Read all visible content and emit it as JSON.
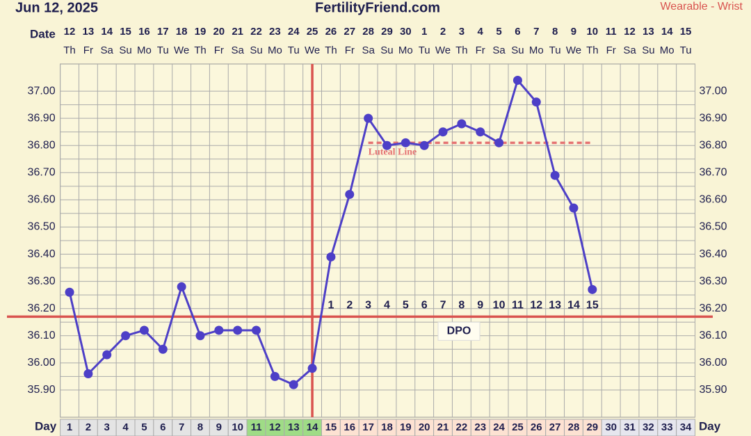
{
  "header": {
    "date": "Jun 12, 2025",
    "site": "FertilityFriend.com",
    "source": "Wearable - Wrist"
  },
  "chart_data": {
    "type": "line",
    "x_label": "Day",
    "date_label": "Date",
    "categories": [
      "1",
      "2",
      "3",
      "4",
      "5",
      "6",
      "7",
      "8",
      "9",
      "10",
      "11",
      "12",
      "13",
      "14",
      "15",
      "16",
      "17",
      "18",
      "19",
      "20",
      "21",
      "22",
      "23",
      "24",
      "25",
      "26",
      "27",
      "28",
      "29",
      "30",
      "31",
      "32",
      "33",
      "34"
    ],
    "dates": [
      "12",
      "13",
      "14",
      "15",
      "16",
      "17",
      "18",
      "19",
      "20",
      "21",
      "22",
      "23",
      "24",
      "25",
      "26",
      "27",
      "28",
      "29",
      "30",
      "1",
      "2",
      "3",
      "4",
      "5",
      "6",
      "7",
      "8",
      "9",
      "10",
      "11",
      "12",
      "13",
      "14",
      "15"
    ],
    "weekdays": [
      "Th",
      "Fr",
      "Sa",
      "Su",
      "Mo",
      "Tu",
      "We",
      "Th",
      "Fr",
      "Sa",
      "Su",
      "Mo",
      "Tu",
      "We",
      "Th",
      "Fr",
      "Sa",
      "Su",
      "Mo",
      "Tu",
      "We",
      "Th",
      "Fr",
      "Sa",
      "Su",
      "Mo",
      "Tu",
      "We",
      "Th",
      "Fr",
      "Sa",
      "Su",
      "Mo",
      "Tu"
    ],
    "day_colors": [
      "#e4e4e4",
      "#e4e4e4",
      "#e4e4e4",
      "#e4e4e4",
      "#e4e4e4",
      "#e4e4e4",
      "#e4e4e4",
      "#e4e4e4",
      "#e4e4e4",
      "#e4e4e4",
      "#9fdc86",
      "#9fdc86",
      "#9fdc86",
      "#9fdc86",
      "#fde2d2",
      "#fde2d2",
      "#fde2d2",
      "#fde2d2",
      "#fde2d2",
      "#fde2d2",
      "#fde2d2",
      "#fde2d2",
      "#fde2d2",
      "#fde2d2",
      "#fde2d2",
      "#fde2d2",
      "#fde2d2",
      "#fde2d2",
      "#fde2d2",
      "#e6e6ee",
      "#e6e6ee",
      "#e6e6ee",
      "#e6e6ee",
      "#e6e6ee"
    ],
    "values": [
      36.26,
      35.96,
      36.03,
      36.1,
      36.12,
      36.05,
      36.28,
      36.1,
      36.12,
      36.12,
      36.12,
      35.95,
      35.92,
      35.98,
      36.39,
      36.62,
      36.9,
      36.8,
      36.81,
      36.8,
      36.85,
      36.88,
      36.85,
      36.81,
      37.04,
      36.96,
      36.69,
      36.57,
      36.27,
      null,
      null,
      null,
      null,
      null
    ],
    "color": "#4d3fc7",
    "dpo_label": "DPO",
    "dpo_numbers": [
      null,
      null,
      null,
      null,
      null,
      null,
      null,
      null,
      null,
      null,
      null,
      null,
      null,
      null,
      1,
      2,
      3,
      4,
      5,
      6,
      7,
      8,
      9,
      10,
      11,
      12,
      13,
      14,
      15,
      null,
      null,
      null,
      null,
      null
    ],
    "coverline": {
      "value": 36.17,
      "color": "#d9534f"
    },
    "ovulation_day": 14,
    "luteal_line": {
      "label": "Luteal Line",
      "value": 36.81,
      "start_day": 17,
      "end_day": 29,
      "color": "#e57373"
    },
    "ylim": [
      35.8,
      37.1
    ],
    "yticks": [
      {
        "value": 35.9,
        "label": "35.90"
      },
      {
        "value": 36.0,
        "label": "36.00"
      },
      {
        "value": 36.1,
        "label": "36.10"
      },
      {
        "value": 36.2,
        "label": "36.20"
      },
      {
        "value": 36.3,
        "label": "36.30"
      },
      {
        "value": 36.4,
        "label": "36.40"
      },
      {
        "value": 36.5,
        "label": "36.50"
      },
      {
        "value": 36.6,
        "label": "36.60"
      },
      {
        "value": 36.7,
        "label": "36.70"
      },
      {
        "value": 36.8,
        "label": "36.80"
      },
      {
        "value": 36.9,
        "label": "36.90"
      },
      {
        "value": 37.0,
        "label": "37.00"
      }
    ],
    "grid": true
  }
}
